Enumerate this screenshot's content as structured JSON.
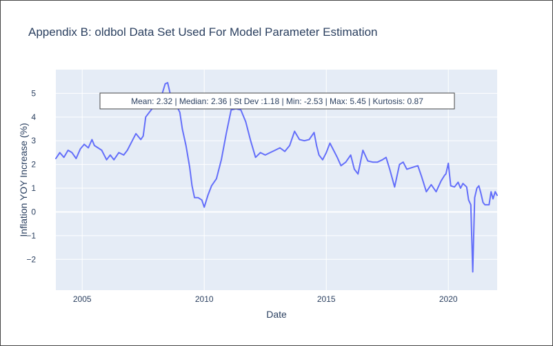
{
  "chart_data": {
    "type": "line",
    "title": "Appendix B: oldbol Data Set Used For Model Parameter Estimation",
    "xlabel": "Date",
    "ylabel": "Inflation YOY Increase (%)",
    "xlim": [
      2003.92,
      2022.0
    ],
    "ylim": [
      -3.3,
      6.0
    ],
    "x_ticks": [
      2005,
      2010,
      2015,
      2020
    ],
    "y_ticks": [
      -2,
      -1,
      0,
      1,
      2,
      3,
      4,
      5
    ],
    "y_tick_labels": [
      "−2",
      "−1",
      "0",
      "1",
      "2",
      "3",
      "4",
      "5"
    ],
    "grid": true,
    "line_color": "#636efa",
    "plot_bgcolor": "#e5ecf6",
    "annotation": "Mean: 2.32 | Median: 2.36 | St Dev :1.18 | Min: -2.53 | Max: 5.45 | Kurtosis: 0.87",
    "series": [
      {
        "x": [
          2003.92,
          2004.08,
          2004.25,
          2004.42,
          2004.58,
          2004.75,
          2004.92,
          2005.08,
          2005.25,
          2005.4,
          2005.5,
          2005.65,
          2005.8,
          2006.0,
          2006.15,
          2006.3,
          2006.5,
          2006.7,
          2006.85,
          2007.0,
          2007.2,
          2007.4,
          2007.5,
          2007.6,
          2007.75,
          2007.9,
          2008.0,
          2008.1,
          2008.25,
          2008.4,
          2008.5,
          2008.6,
          2008.75,
          2008.9,
          2009.0,
          2009.1,
          2009.25,
          2009.4,
          2009.5,
          2009.6,
          2009.75,
          2009.9,
          2010.0,
          2010.15,
          2010.3,
          2010.5,
          2010.7,
          2010.9,
          2011.1,
          2011.3,
          2011.5,
          2011.7,
          2011.9,
          2012.1,
          2012.3,
          2012.5,
          2012.7,
          2012.9,
          2013.1,
          2013.3,
          2013.5,
          2013.7,
          2013.9,
          2014.1,
          2014.3,
          2014.5,
          2014.6,
          2014.7,
          2014.85,
          2015.0,
          2015.15,
          2015.3,
          2015.45,
          2015.6,
          2015.8,
          2016.0,
          2016.15,
          2016.3,
          2016.5,
          2016.7,
          2016.9,
          2017.1,
          2017.3,
          2017.45,
          2017.6,
          2017.8,
          2018.0,
          2018.15,
          2018.3,
          2018.45,
          2018.6,
          2018.75,
          2018.9,
          2019.1,
          2019.3,
          2019.5,
          2019.7,
          2019.85,
          2019.9,
          2020.0,
          2020.1,
          2020.25,
          2020.4,
          2020.5,
          2020.6,
          2020.75,
          2020.83,
          2020.92,
          2021.0,
          2021.08,
          2021.17,
          2021.25,
          2021.33,
          2021.42,
          2021.5,
          2021.67,
          2021.75,
          2021.83,
          2021.92,
          2022.0
        ],
        "y": [
          2.25,
          2.5,
          2.3,
          2.6,
          2.5,
          2.25,
          2.65,
          2.85,
          2.7,
          3.05,
          2.8,
          2.7,
          2.6,
          2.2,
          2.4,
          2.2,
          2.5,
          2.4,
          2.6,
          2.9,
          3.3,
          3.05,
          3.2,
          4.0,
          4.2,
          4.4,
          4.6,
          4.4,
          4.9,
          5.4,
          5.45,
          5.0,
          4.6,
          4.4,
          4.2,
          3.5,
          2.8,
          1.9,
          1.1,
          0.6,
          0.6,
          0.5,
          0.2,
          0.7,
          1.1,
          1.4,
          2.2,
          3.3,
          4.3,
          4.35,
          4.3,
          3.8,
          3.0,
          2.3,
          2.5,
          2.4,
          2.5,
          2.6,
          2.7,
          2.55,
          2.8,
          3.4,
          3.05,
          3.0,
          3.05,
          3.35,
          2.8,
          2.4,
          2.2,
          2.5,
          2.9,
          2.6,
          2.3,
          1.95,
          2.1,
          2.4,
          1.8,
          1.6,
          2.6,
          2.15,
          2.1,
          2.1,
          2.2,
          2.3,
          1.8,
          1.05,
          2.0,
          2.1,
          1.8,
          1.85,
          1.9,
          1.95,
          1.5,
          0.85,
          1.15,
          0.85,
          1.3,
          1.55,
          1.6,
          2.05,
          1.1,
          1.05,
          1.25,
          1.0,
          1.2,
          1.05,
          0.5,
          0.3,
          -2.53,
          0.6,
          1.0,
          1.1,
          0.8,
          0.4,
          0.3,
          0.3,
          0.85,
          0.55,
          0.85,
          0.7
        ]
      }
    ]
  }
}
